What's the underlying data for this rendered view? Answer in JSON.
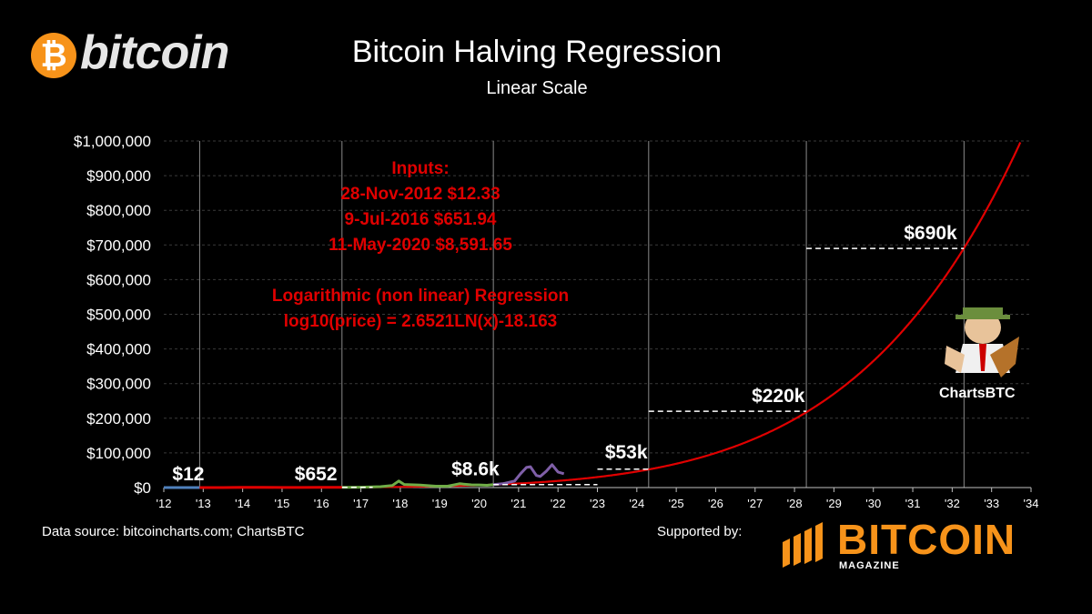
{
  "brand": {
    "logo_symbol": "₿",
    "logo_text": "bitcoin"
  },
  "title": "Bitcoin Halving Regression",
  "subtitle": "Linear Scale",
  "inputs": {
    "heading": "Inputs:",
    "lines": [
      "28-Nov-2012 $12.33",
      "9-Jul-2016 $651.94",
      "11-May-2020 $8,591.65"
    ],
    "regression_title": "Logarithmic (non linear) Regression",
    "regression_formula": "log10(price) = 2.6521LN(x)-18.163"
  },
  "footer": {
    "source": "Data source: bitcoincharts.com; ChartsBTC",
    "supported_by": "Supported by:"
  },
  "sponsor": {
    "name": "BITCOIN",
    "sub": "MAGAZINE"
  },
  "mascot_label": "ChartsBTC",
  "colors": {
    "background": "#000000",
    "regression": "#e00000",
    "inputs_text": "#e00000",
    "price_2012_2016": "#4f81bd",
    "price_2016_2020": "#70ad47",
    "price_2020_2024": "#7f5fa8",
    "grid": "#3a3a3a",
    "halving_line": "#8a8a8a"
  },
  "chart_data": {
    "type": "line",
    "y_scale": "linear",
    "ylim": [
      0,
      1000000
    ],
    "y_ticks": [
      0,
      100000,
      200000,
      300000,
      400000,
      500000,
      600000,
      700000,
      800000,
      900000,
      1000000
    ],
    "y_tick_labels": [
      "$0",
      "$100,000",
      "$200,000",
      "$300,000",
      "$400,000",
      "$500,000",
      "$600,000",
      "$700,000",
      "$800,000",
      "$900,000",
      "$1,000,000"
    ],
    "xlim": [
      2012.0,
      2034.0
    ],
    "x_ticks": [
      2012,
      2013,
      2014,
      2015,
      2016,
      2017,
      2018,
      2019,
      2020,
      2021,
      2022,
      2023,
      2024,
      2025,
      2026,
      2027,
      2028,
      2029,
      2030,
      2031,
      2032,
      2033,
      2034
    ],
    "x_tick_labels": [
      "'12",
      "'13",
      "'14",
      "'15",
      "'16",
      "'17",
      "'18",
      "'19",
      "'20",
      "'21",
      "'22",
      "'23",
      "'24",
      "'25",
      "'26",
      "'27",
      "'28",
      "'29",
      "'30",
      "'31",
      "'32",
      "'33",
      "'34"
    ],
    "grid": true,
    "halving_lines": [
      2012.91,
      2016.52,
      2020.36,
      2024.3,
      2028.3,
      2032.3
    ],
    "series": [
      {
        "kind": "price",
        "color_key": "price_2012_2016",
        "x": [
          2012.0,
          2012.5,
          2012.91
        ],
        "y": [
          5,
          8,
          12
        ]
      },
      {
        "kind": "price",
        "color_key": "regression",
        "x": [
          2012.91,
          2013.5,
          2014.0,
          2014.5,
          2015.0,
          2015.5,
          2016.0,
          2016.52
        ],
        "y": [
          12,
          120,
          800,
          600,
          250,
          250,
          430,
          652
        ]
      },
      {
        "kind": "price",
        "color_key": "price_2016_2020",
        "x": [
          2016.52,
          2017.0,
          2017.5,
          2017.8,
          2017.96,
          2018.1,
          2018.5,
          2018.9,
          2019.2,
          2019.5,
          2019.8,
          2020.0,
          2020.2,
          2020.36
        ],
        "y": [
          652,
          1000,
          2500,
          6000,
          19000,
          9000,
          7000,
          4000,
          4000,
          11000,
          8000,
          7500,
          6500,
          8600
        ]
      },
      {
        "kind": "price",
        "color_key": "price_2020_2024",
        "x": [
          2020.36,
          2020.6,
          2020.9,
          2021.05,
          2021.2,
          2021.3,
          2021.45,
          2021.55,
          2021.7,
          2021.85,
          2022.0,
          2022.15
        ],
        "y": [
          8600,
          11000,
          19000,
          40000,
          58000,
          60000,
          35000,
          32000,
          47000,
          66000,
          45000,
          40000
        ]
      }
    ],
    "regression": {
      "formula": "log10(price) = 2.6521LN(x)-18.163",
      "points": [
        {
          "x": 2012.91,
          "y": 12
        },
        {
          "x": 2016.52,
          "y": 652
        },
        {
          "x": 2020.36,
          "y": 8600
        },
        {
          "x": 2024.3,
          "y": 53000
        },
        {
          "x": 2028.3,
          "y": 220000
        },
        {
          "x": 2032.3,
          "y": 690000
        },
        {
          "x": 2033.85,
          "y": 1000000
        }
      ]
    },
    "annotations": [
      {
        "label": "$12",
        "x": 2012.91,
        "y": 12
      },
      {
        "label": "$652",
        "x": 2016.52,
        "y": 652
      },
      {
        "label": "$8.6k",
        "x": 2020.36,
        "y": 8600
      },
      {
        "label": "$53k",
        "x": 2024.3,
        "y": 53000
      },
      {
        "label": "$220k",
        "x": 2028.3,
        "y": 220000
      },
      {
        "label": "$690k",
        "x": 2032.3,
        "y": 690000
      }
    ]
  }
}
